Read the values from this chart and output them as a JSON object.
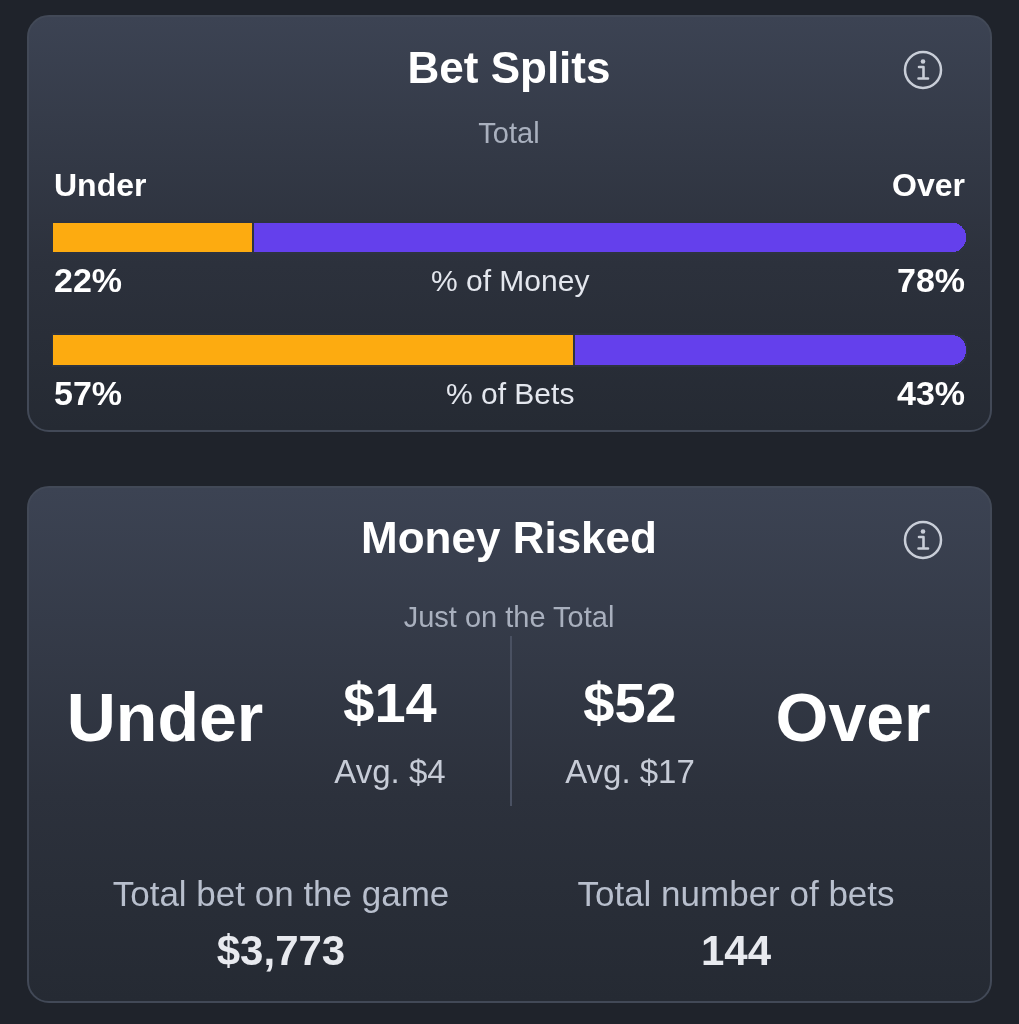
{
  "chart_data": [
    {
      "type": "bar",
      "title": "Bet Splits",
      "subtitle": "Total",
      "orientation": "horizontal",
      "stacked": true,
      "categories": [
        "% of Money",
        "% of Bets"
      ],
      "tick_labels": "y",
      "series": [
        {
          "name": "Under",
          "color": "#fdab10",
          "values": [
            22,
            57
          ],
          "value_labels": [
            "22%",
            "57%"
          ]
        },
        {
          "name": "Over",
          "color": "#6440ec",
          "values": [
            78,
            43
          ],
          "value_labels": [
            "78%",
            "43%"
          ]
        }
      ]
    },
    {
      "type": "other",
      "title": "Money Risked",
      "subtitle": "Just on the Total",
      "annotations": [
        "Under",
        "$14",
        "Avg. $4",
        "$52",
        "Avg. $17",
        "Over",
        "Total bet on the game",
        "$3,773",
        "Total number of bets",
        "144"
      ]
    }
  ]
}
